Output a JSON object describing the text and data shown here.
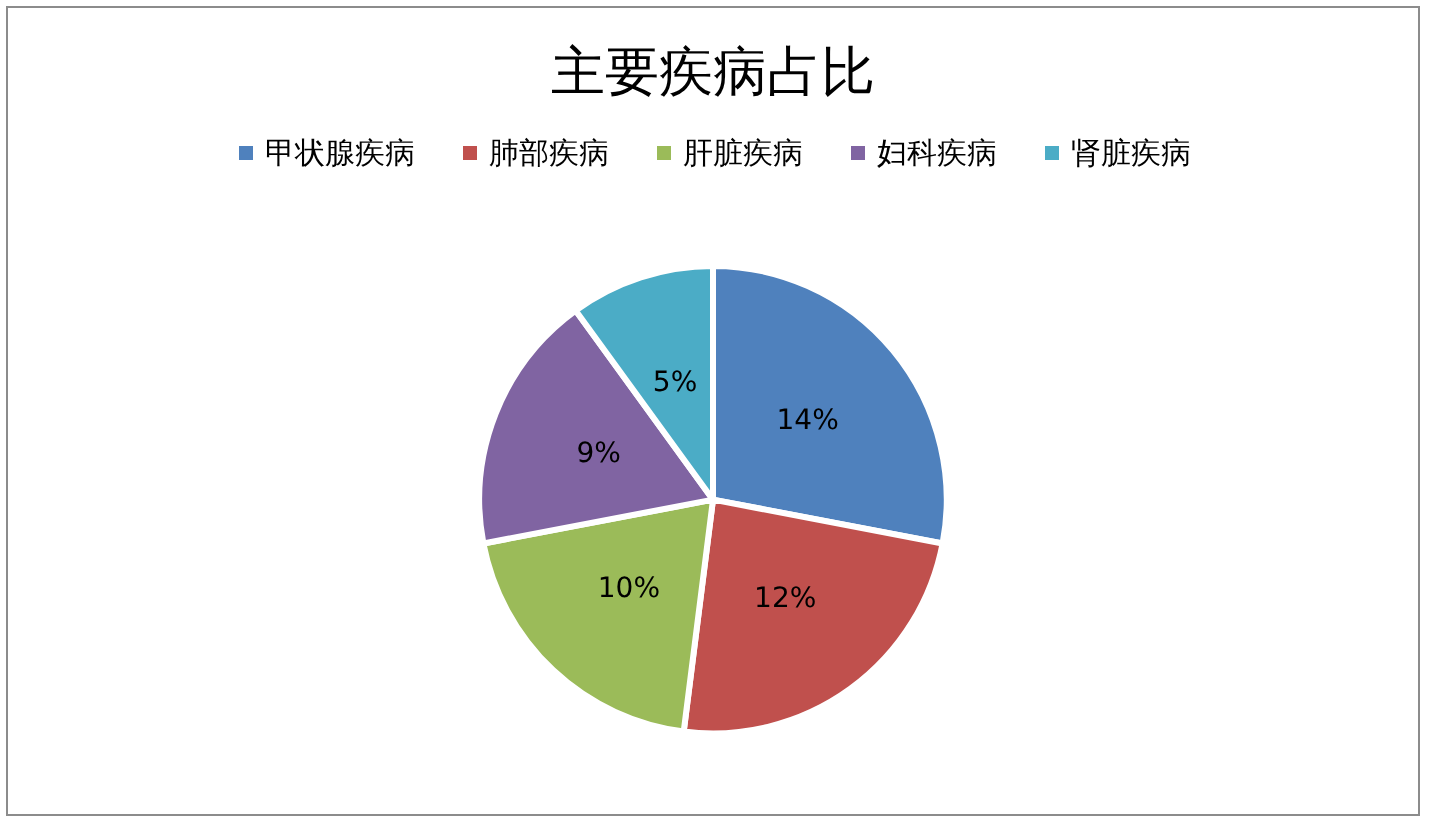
{
  "chart_data": {
    "type": "pie",
    "title": "主要疾病占比",
    "categories": [
      "甲状腺疾病",
      "肺部疾病",
      "肝脏疾病",
      "妇科疾病",
      "肾脏疾病"
    ],
    "values": [
      14,
      12,
      10,
      9,
      5
    ],
    "value_labels": [
      "14%",
      "12%",
      "10%",
      "9%",
      "5%"
    ],
    "colors": [
      "#4f81bd",
      "#c0504d",
      "#9bbb59",
      "#8064a2",
      "#4bacc6"
    ],
    "legend": "top"
  }
}
